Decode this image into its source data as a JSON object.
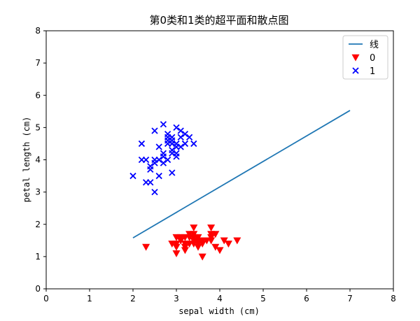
{
  "chart_data": {
    "type": "scatter",
    "title": "第0类和1类的超平面和散点图",
    "xlabel": "sepal width (cm)",
    "ylabel": "petal length (cm)",
    "xlim": [
      0,
      8
    ],
    "ylim": [
      0,
      8
    ],
    "xticks": [
      "0",
      "1",
      "2",
      "3",
      "4",
      "5",
      "6",
      "7",
      "8"
    ],
    "yticks": [
      "0",
      "1",
      "2",
      "3",
      "4",
      "5",
      "6",
      "7",
      "8"
    ],
    "grid": false,
    "legend_position": "top-right",
    "line": {
      "name": "线",
      "color": "#1f77b4",
      "points": [
        [
          2.0,
          1.58
        ],
        [
          7.0,
          5.53
        ]
      ]
    },
    "series": [
      {
        "name": "0",
        "marker": "triangle-down",
        "color": "#ff0000",
        "points": [
          [
            2.3,
            1.3
          ],
          [
            2.9,
            1.4
          ],
          [
            3.0,
            1.4
          ],
          [
            3.0,
            1.3
          ],
          [
            3.0,
            1.1
          ],
          [
            3.0,
            1.6
          ],
          [
            3.1,
            1.5
          ],
          [
            3.1,
            1.6
          ],
          [
            3.1,
            1.5
          ],
          [
            3.2,
            1.6
          ],
          [
            3.2,
            1.3
          ],
          [
            3.2,
            1.2
          ],
          [
            3.2,
            1.4
          ],
          [
            3.3,
            1.4
          ],
          [
            3.3,
            1.7
          ],
          [
            3.4,
            1.5
          ],
          [
            3.4,
            1.6
          ],
          [
            3.4,
            1.9
          ],
          [
            3.4,
            1.4
          ],
          [
            3.4,
            1.7
          ],
          [
            3.4,
            1.5
          ],
          [
            3.5,
            1.4
          ],
          [
            3.5,
            1.3
          ],
          [
            3.5,
            1.5
          ],
          [
            3.5,
            1.6
          ],
          [
            3.6,
            1.4
          ],
          [
            3.6,
            1.0
          ],
          [
            3.7,
            1.5
          ],
          [
            3.8,
            1.5
          ],
          [
            3.8,
            1.9
          ],
          [
            3.8,
            1.7
          ],
          [
            3.8,
            1.6
          ],
          [
            3.9,
            1.7
          ],
          [
            3.9,
            1.3
          ],
          [
            4.0,
            1.2
          ],
          [
            4.1,
            1.5
          ],
          [
            4.2,
            1.4
          ],
          [
            4.4,
            1.5
          ],
          [
            3.3,
            1.6
          ],
          [
            3.6,
            1.5
          ]
        ]
      },
      {
        "name": "1",
        "marker": "x",
        "color": "#0000ff",
        "points": [
          [
            2.0,
            3.5
          ],
          [
            2.2,
            4.0
          ],
          [
            2.2,
            4.5
          ],
          [
            2.3,
            3.3
          ],
          [
            2.3,
            4.0
          ],
          [
            2.4,
            3.7
          ],
          [
            2.4,
            3.8
          ],
          [
            2.4,
            3.3
          ],
          [
            2.5,
            3.0
          ],
          [
            2.5,
            4.0
          ],
          [
            2.5,
            3.9
          ],
          [
            2.5,
            4.9
          ],
          [
            2.6,
            3.5
          ],
          [
            2.6,
            4.0
          ],
          [
            2.6,
            4.4
          ],
          [
            2.7,
            3.9
          ],
          [
            2.7,
            4.1
          ],
          [
            2.7,
            4.2
          ],
          [
            2.7,
            5.1
          ],
          [
            2.8,
            4.0
          ],
          [
            2.8,
            4.5
          ],
          [
            2.8,
            4.6
          ],
          [
            2.8,
            4.7
          ],
          [
            2.8,
            4.8
          ],
          [
            2.9,
            3.6
          ],
          [
            2.9,
            4.2
          ],
          [
            2.9,
            4.3
          ],
          [
            2.9,
            4.5
          ],
          [
            2.9,
            4.6
          ],
          [
            2.9,
            4.7
          ],
          [
            3.0,
            4.1
          ],
          [
            3.0,
            4.2
          ],
          [
            3.0,
            4.4
          ],
          [
            3.0,
            4.5
          ],
          [
            3.0,
            5.0
          ],
          [
            3.1,
            4.4
          ],
          [
            3.1,
            4.7
          ],
          [
            3.1,
            4.9
          ],
          [
            3.2,
            4.5
          ],
          [
            3.2,
            4.8
          ],
          [
            3.3,
            4.7
          ],
          [
            3.4,
            4.5
          ]
        ]
      }
    ]
  }
}
